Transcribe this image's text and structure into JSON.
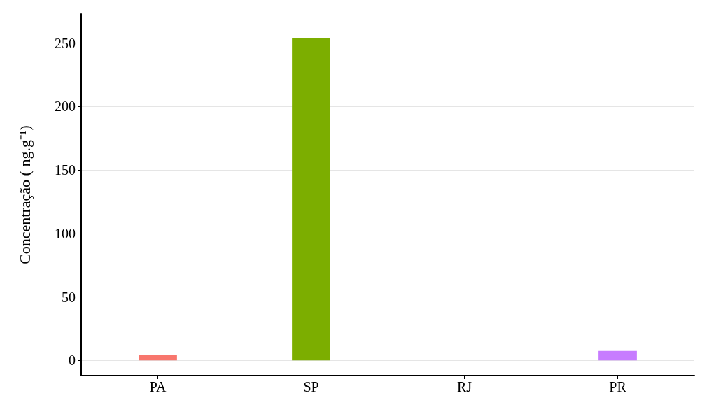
{
  "chart_data": {
    "type": "bar",
    "ylabel": "Concentração ( ng.g⁻¹)",
    "categories": [
      "PA",
      "SP",
      "RJ",
      "PR"
    ],
    "values": [
      4.4,
      254,
      0,
      7.4
    ],
    "colors": [
      "#f8766d",
      "#7cae00",
      "#00bfc4",
      "#c77cff"
    ],
    "ylim": [
      -12,
      273
    ],
    "yticks": [
      0,
      50,
      100,
      150,
      200,
      250
    ],
    "grid": "y"
  }
}
